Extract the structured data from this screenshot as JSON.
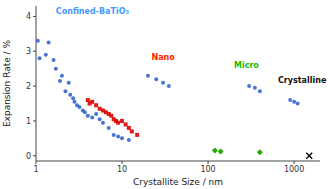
{
  "chart_data": {
    "type": "scatter",
    "title": "",
    "xlabel": "Crystallite Size / nm",
    "ylabel": "Expansion Rate / %",
    "log": "x",
    "grid": false,
    "xlim": [
      1,
      2000
    ],
    "ylim": [
      -0.15,
      4.3
    ],
    "xticks": [
      1,
      10,
      100,
      1000
    ],
    "yticks": [
      0,
      1,
      2,
      3,
      4
    ],
    "series": [
      {
        "color": "#3366CC",
        "marker": "circle",
        "x": [
          1.05,
          1.1,
          1.3,
          1.4,
          1.6,
          1.7,
          1.9,
          2.0,
          2.2,
          2.4,
          2.5,
          2.7,
          2.8,
          3.0,
          3.2,
          3.5,
          3.7,
          4.0,
          4.5,
          5.0,
          5.5,
          6.0,
          7.0,
          8.0,
          9.0,
          10.0,
          12.0,
          20,
          25,
          30,
          35,
          300,
          350,
          400,
          900,
          1000,
          1100
        ],
        "values": [
          3.3,
          2.8,
          2.9,
          3.25,
          2.75,
          2.5,
          2.15,
          2.3,
          1.85,
          2.1,
          1.75,
          1.65,
          1.55,
          1.45,
          1.4,
          1.3,
          1.25,
          1.15,
          1.1,
          1.2,
          1.05,
          0.95,
          0.8,
          0.6,
          0.55,
          0.5,
          0.45,
          2.3,
          2.2,
          2.1,
          2.0,
          2.0,
          1.95,
          1.85,
          1.6,
          1.55,
          1.5
        ]
      },
      {
        "color": "#DD0000",
        "marker": "square",
        "x": [
          4.0,
          4.2,
          4.5,
          5.0,
          5.5,
          6.0,
          6.5,
          7.0,
          7.5,
          8.0,
          8.5,
          9.0,
          10.0,
          11.0,
          12.0,
          13.0,
          15.0
        ],
        "values": [
          1.6,
          1.5,
          1.55,
          1.45,
          1.35,
          1.3,
          1.25,
          1.2,
          1.15,
          1.05,
          1.0,
          0.95,
          1.0,
          0.9,
          0.8,
          0.7,
          0.6
        ]
      },
      {
        "color": "#22AA00",
        "marker": "diamond",
        "x": [
          120,
          140,
          400
        ],
        "values": [
          0.15,
          0.12,
          0.1
        ]
      },
      {
        "color": "black",
        "marker": "x",
        "x": [
          1500
        ],
        "values": [
          0.0
        ]
      }
    ],
    "annotations": [
      {
        "text": "Confined-BaTiO₃",
        "x": 1.7,
        "y": 4.05,
        "color": "#4499FF"
      },
      {
        "text": "Nano",
        "x": 22,
        "y": 2.72,
        "color": "#FF2200"
      },
      {
        "text": "Micro",
        "x": 200,
        "y": 2.5,
        "color": "#22BB00"
      },
      {
        "text": "Crystalline",
        "x": 650,
        "y": 2.05,
        "color": "#111111"
      }
    ]
  }
}
